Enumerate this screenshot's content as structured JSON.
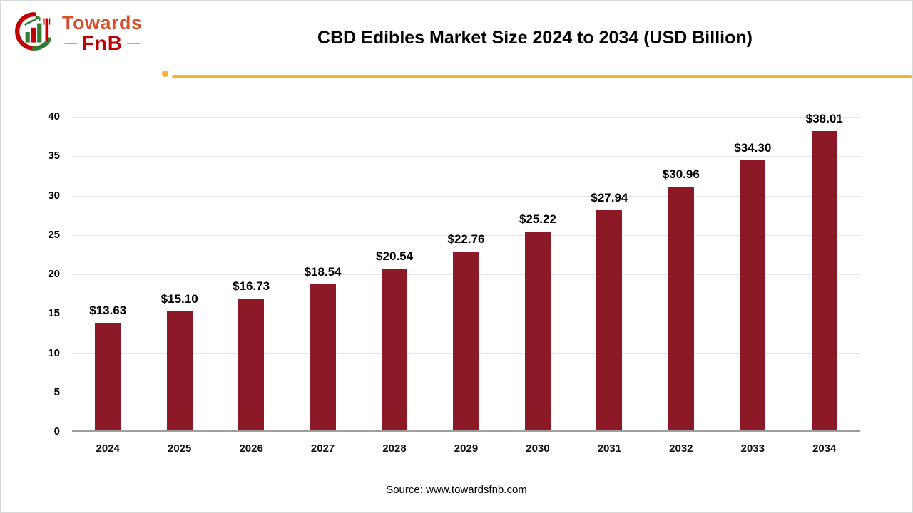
{
  "logo": {
    "brand_top": "Towards",
    "brand_bottom": "FnB",
    "dash": "—"
  },
  "title": "CBD Edibles Market Size 2024 to 2034 (USD Billion)",
  "source": "Source: www.towardsfnb.com",
  "colors": {
    "accent_line": "#f2b233",
    "bar": "#8b1a26",
    "gridline": "#e4e4e4",
    "baseline": "#9e9e9e",
    "brand_top": "#d94f2b",
    "brand_bottom": "#c00000"
  },
  "chart_data": {
    "type": "bar",
    "title": "CBD Edibles Market Size 2024 to 2034 (USD Billion)",
    "categories": [
      "2024",
      "2025",
      "2026",
      "2027",
      "2028",
      "2029",
      "2030",
      "2031",
      "2032",
      "2033",
      "2034"
    ],
    "values": [
      13.63,
      15.1,
      16.73,
      18.54,
      20.54,
      22.76,
      25.22,
      27.94,
      30.96,
      34.3,
      38.01
    ],
    "labels": [
      "$13.63",
      "$15.10",
      "$16.73",
      "$18.54",
      "$20.54",
      "$22.76",
      "$25.22",
      "$27.94",
      "$30.96",
      "$34.30",
      "$38.01"
    ],
    "xlabel": "",
    "ylabel": "",
    "ylim": [
      0,
      40
    ],
    "yticks": [
      0,
      5,
      10,
      15,
      20,
      25,
      30,
      35,
      40
    ],
    "grid": true,
    "legend": false,
    "bar_color": "#8b1a26"
  }
}
